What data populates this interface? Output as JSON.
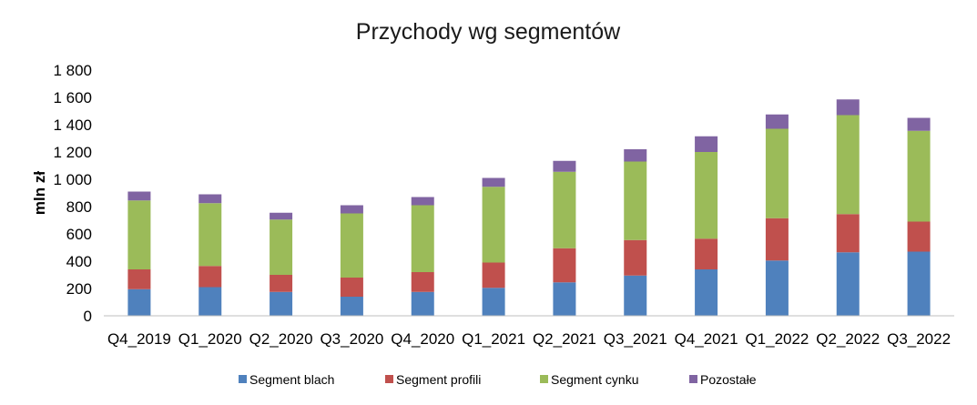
{
  "chart_data": {
    "type": "bar",
    "stacked": true,
    "title": "Przychody wg segmentów",
    "xlabel": "",
    "ylabel": "mln zł",
    "ylim": [
      0,
      1800
    ],
    "yticks": [
      0,
      200,
      400,
      600,
      800,
      1000,
      1200,
      1400,
      1600,
      1800
    ],
    "ytick_labels": [
      "0",
      "200",
      "400",
      "600",
      "800",
      "1 000",
      "1 200",
      "1 400",
      "1 600",
      "1 800"
    ],
    "grid": false,
    "legend_position": "bottom",
    "categories": [
      "Q4_2019",
      "Q1_2020",
      "Q2_2020",
      "Q3_2020",
      "Q4_2020",
      "Q1_2021",
      "Q2_2021",
      "Q3_2021",
      "Q4_2021",
      "Q1_2022",
      "Q2_2022",
      "Q3_2022"
    ],
    "series": [
      {
        "name": "Segment blach",
        "color": "#4F81BD",
        "values": [
          195,
          210,
          175,
          140,
          175,
          205,
          245,
          295,
          340,
          405,
          465,
          470
        ]
      },
      {
        "name": "Segment profili",
        "color": "#C0504D",
        "values": [
          145,
          155,
          125,
          140,
          145,
          185,
          250,
          260,
          225,
          310,
          280,
          220
        ]
      },
      {
        "name": "Segment cynku",
        "color": "#9BBB59",
        "values": [
          505,
          460,
          405,
          470,
          490,
          555,
          560,
          575,
          635,
          655,
          725,
          665
        ]
      },
      {
        "name": "Pozostałe",
        "color": "#8064A2",
        "values": [
          65,
          65,
          50,
          60,
          60,
          65,
          80,
          90,
          115,
          105,
          115,
          95
        ]
      }
    ]
  }
}
